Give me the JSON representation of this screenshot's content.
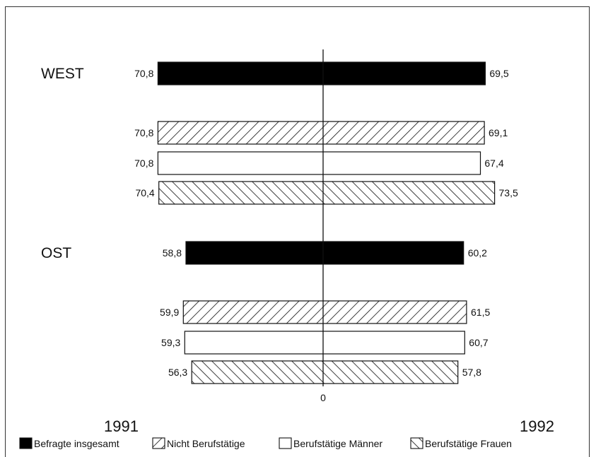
{
  "chart_data": {
    "type": "bar",
    "orientation": "horizontal-diverging",
    "year_left": "1991",
    "year_right": "1992",
    "center_tick_label": "0",
    "series": [
      {
        "name": "Befragte insgesamt",
        "pattern": "solid"
      },
      {
        "name": "Nicht Berufstätige",
        "pattern": "diagonal-right"
      },
      {
        "name": "Berufstätige Männer",
        "pattern": "empty"
      },
      {
        "name": "Berufstätige Frauen",
        "pattern": "diagonal-left"
      }
    ],
    "groups": [
      {
        "label": "WEST",
        "bars": [
          {
            "series": "Befragte insgesamt",
            "v1991": 70.8,
            "v1992": 69.5,
            "l1991": "70,8",
            "l1992": "69,5"
          },
          {
            "series": "Nicht Berufstätige",
            "v1991": 70.8,
            "v1992": 69.1,
            "l1991": "70,8",
            "l1992": "69,1"
          },
          {
            "series": "Berufstätige Männer",
            "v1991": 70.8,
            "v1992": 67.4,
            "l1991": "70,8",
            "l1992": "67,4"
          },
          {
            "series": "Berufstätige Frauen",
            "v1991": 70.4,
            "v1992": 73.5,
            "l1991": "70,4",
            "l1992": "73,5"
          }
        ]
      },
      {
        "label": "OST",
        "bars": [
          {
            "series": "Befragte insgesamt",
            "v1991": 58.8,
            "v1992": 60.2,
            "l1991": "58,8",
            "l1992": "60,2"
          },
          {
            "series": "Nicht Berufstätige",
            "v1991": 59.9,
            "v1992": 61.5,
            "l1991": "59,9",
            "l1992": "61,5"
          },
          {
            "series": "Berufstätige Männer",
            "v1991": 59.3,
            "v1992": 60.7,
            "l1991": "59,3",
            "l1992": "60,7"
          },
          {
            "series": "Berufstätige Frauen",
            "v1991": 56.3,
            "v1992": 57.8,
            "l1991": "56,3",
            "l1992": "57,8"
          }
        ]
      }
    ]
  }
}
